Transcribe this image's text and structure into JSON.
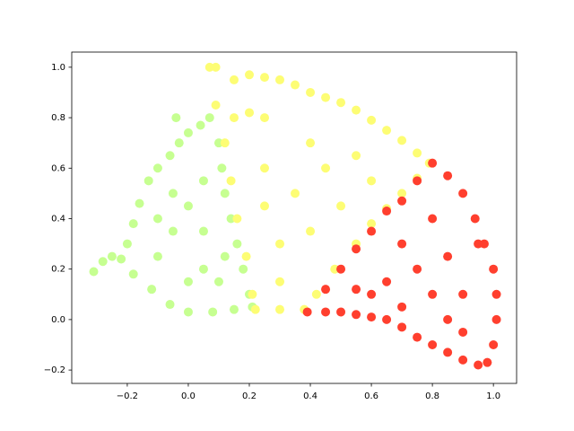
{
  "chart_data": {
    "type": "scatter",
    "xlim": [
      -0.382,
      1.076
    ],
    "ylim": [
      -0.253,
      1.06
    ],
    "xticks": [
      {
        "value": -0.2,
        "label": "−0.2"
      },
      {
        "value": 0.0,
        "label": "0.0"
      },
      0.2,
      0.4,
      0.6,
      0.8,
      {
        "value": 1.0,
        "label": "1.0"
      }
    ],
    "yticks": [
      {
        "value": -0.2,
        "label": "−0.2"
      },
      {
        "value": 0.0,
        "label": "0.0"
      },
      0.2,
      0.4,
      0.6,
      0.8,
      {
        "value": 1.0,
        "label": "1.0"
      }
    ],
    "grid": false,
    "series": [
      {
        "color": "#c6ff91",
        "x": [
          -0.31,
          -0.28,
          -0.25,
          -0.22,
          -0.2,
          -0.18,
          -0.16,
          -0.13,
          -0.1,
          -0.06,
          -0.03,
          0.0,
          0.04,
          0.07,
          -0.04,
          0.1,
          0.11,
          0.12,
          0.14,
          0.16,
          0.18,
          0.2,
          0.21,
          0.15,
          0.08,
          0.0,
          -0.06,
          -0.12,
          -0.18,
          -0.1,
          -0.05,
          0.0,
          0.05,
          -0.05,
          0.05,
          0.1,
          -0.1,
          0.05,
          0.0,
          0.12
        ],
        "y": [
          0.19,
          0.23,
          0.25,
          0.24,
          0.3,
          0.38,
          0.46,
          0.55,
          0.6,
          0.65,
          0.7,
          0.74,
          0.77,
          0.8,
          0.8,
          0.7,
          0.6,
          0.5,
          0.4,
          0.3,
          0.2,
          0.1,
          0.05,
          0.04,
          0.03,
          0.03,
          0.06,
          0.12,
          0.18,
          0.25,
          0.35,
          0.45,
          0.55,
          0.5,
          0.2,
          0.15,
          0.4,
          0.35,
          0.15,
          0.25
        ]
      },
      {
        "color": "#fdfd74",
        "x": [
          0.07,
          0.09,
          0.15,
          0.2,
          0.25,
          0.3,
          0.35,
          0.4,
          0.45,
          0.5,
          0.55,
          0.6,
          0.65,
          0.7,
          0.75,
          0.79,
          0.09,
          0.15,
          0.2,
          0.25,
          0.12,
          0.14,
          0.16,
          0.19,
          0.21,
          0.22,
          0.3,
          0.38,
          0.42,
          0.48,
          0.55,
          0.6,
          0.65,
          0.7,
          0.75,
          0.3,
          0.35,
          0.45,
          0.25,
          0.3,
          0.4,
          0.55,
          0.4,
          0.5,
          0.25,
          0.6
        ],
        "y": [
          1.0,
          1.0,
          0.95,
          0.97,
          0.96,
          0.95,
          0.93,
          0.9,
          0.88,
          0.86,
          0.83,
          0.79,
          0.75,
          0.71,
          0.66,
          0.62,
          0.85,
          0.8,
          0.82,
          0.8,
          0.7,
          0.55,
          0.4,
          0.25,
          0.1,
          0.04,
          0.04,
          0.04,
          0.1,
          0.2,
          0.3,
          0.38,
          0.44,
          0.5,
          0.56,
          0.3,
          0.5,
          0.6,
          0.6,
          0.15,
          0.7,
          0.65,
          0.35,
          0.45,
          0.45,
          0.55
        ]
      },
      {
        "color": "#ff3f2e",
        "x": [
          0.39,
          0.45,
          0.5,
          0.55,
          0.6,
          0.65,
          0.7,
          0.75,
          0.8,
          0.85,
          0.9,
          0.95,
          0.98,
          1.0,
          1.01,
          1.01,
          1.0,
          0.97,
          0.94,
          0.9,
          0.85,
          0.8,
          0.75,
          0.7,
          0.65,
          0.6,
          0.55,
          0.5,
          0.45,
          0.55,
          0.65,
          0.7,
          0.8,
          0.85,
          0.9,
          0.9,
          0.8,
          0.75,
          0.6,
          0.95,
          0.85,
          0.7
        ],
        "y": [
          0.03,
          0.03,
          0.03,
          0.02,
          0.01,
          0.0,
          -0.03,
          -0.07,
          -0.1,
          -0.13,
          -0.16,
          -0.18,
          -0.17,
          -0.1,
          0.0,
          0.1,
          0.2,
          0.3,
          0.4,
          0.5,
          0.57,
          0.62,
          0.55,
          0.47,
          0.43,
          0.35,
          0.28,
          0.2,
          0.12,
          0.12,
          0.15,
          0.3,
          0.4,
          0.25,
          0.1,
          -0.05,
          0.1,
          0.2,
          0.1,
          0.3,
          0.0,
          0.05
        ]
      }
    ]
  }
}
